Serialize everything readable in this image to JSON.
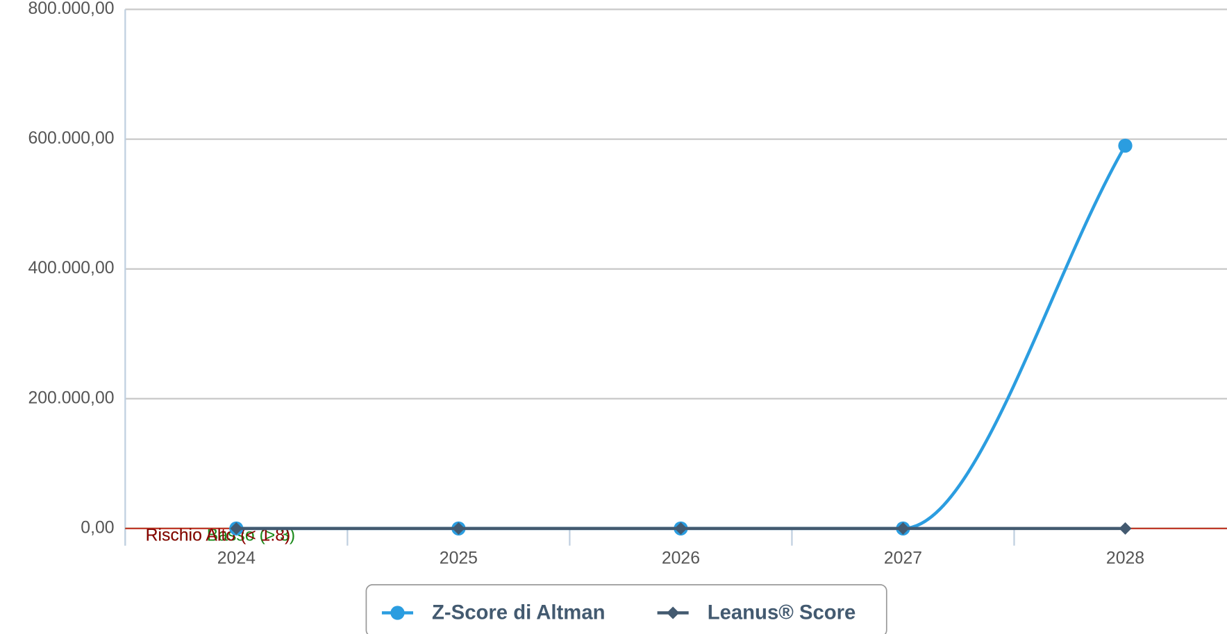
{
  "chart_data": {
    "type": "line",
    "categories": [
      "2024",
      "2025",
      "2026",
      "2027",
      "2028"
    ],
    "series": [
      {
        "name": "Z-Score di Altman",
        "color": "#2b9de0",
        "marker": "circle",
        "smooth": true,
        "values": [
          0,
          0,
          0,
          0,
          590000
        ]
      },
      {
        "name": "Leanus® Score",
        "color": "#435a70",
        "marker": "diamond",
        "smooth": false,
        "values": [
          0,
          0,
          0,
          0,
          0
        ]
      }
    ],
    "ylim": [
      0,
      800000
    ],
    "yticks": [
      {
        "value": 0,
        "label": "0,00"
      },
      {
        "value": 200000,
        "label": "200.000,00"
      },
      {
        "value": 400000,
        "label": "400.000,00"
      },
      {
        "value": 600000,
        "label": "600.000,00"
      },
      {
        "value": 800000,
        "label": "800.000,00"
      }
    ],
    "grid": true,
    "plot_lines": [
      {
        "label": "Rischio Basso (> 3)",
        "value": 3,
        "color": "#1a8a1a",
        "line_color": "#7dc242"
      },
      {
        "label": "Rischio Alto (< 1.8)",
        "value": 1.8,
        "color": "#8b0000",
        "line_color": "#c0392b"
      }
    ],
    "legend": "bottom"
  }
}
